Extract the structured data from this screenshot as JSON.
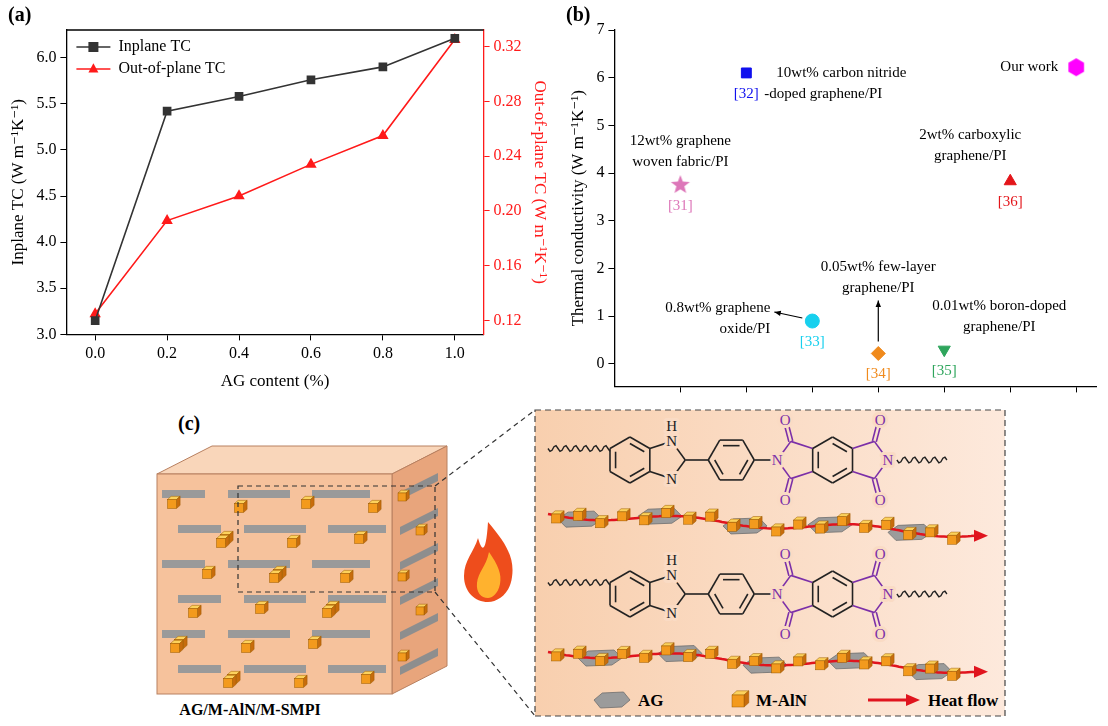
{
  "chart_data": [
    {
      "panel_label": "(a)",
      "type": "line",
      "x": [
        0,
        0.2,
        0.4,
        0.6,
        0.8,
        1.0
      ],
      "x_label": "AG content (%)",
      "y_label": "Inplane TC (W m⁻¹K⁻¹)",
      "y2_label": "Out-of-plane TC (W m⁻¹K⁻¹)",
      "xlim": [
        -0.08,
        1.08
      ],
      "xticks": [
        {
          "value": 0,
          "label": "0.0"
        },
        0.2,
        0.4,
        0.6,
        0.8,
        {
          "value": 1,
          "label": "1.0"
        }
      ],
      "ylim": [
        3.0,
        6.3
      ],
      "yticks": [
        {
          "value": 3,
          "label": "3.0"
        },
        3.5,
        {
          "value": 4,
          "label": "4.0"
        },
        4.5,
        {
          "value": 5,
          "label": "5.0"
        },
        5.5,
        {
          "value": 6,
          "label": "6.0"
        }
      ],
      "y2lim": [
        0.11,
        0.332
      ],
      "y2ticks": [
        0.12,
        0.16,
        {
          "value": 0.2,
          "label": "0.20"
        },
        0.24,
        0.28,
        0.32
      ],
      "grid": false,
      "legend": "upper left",
      "series": [
        {
          "name": "Inplane TC",
          "color": "#333333",
          "marker": "square",
          "line_style": "solid",
          "values": [
            3.15,
            5.42,
            5.58,
            5.76,
            5.9,
            6.21
          ]
        },
        {
          "name": "Out-of-plane TC",
          "color": "#ff1a1a",
          "marker": "triangle",
          "line_style": "solid",
          "axis": "y2",
          "values": [
            0.125,
            0.193,
            0.211,
            0.234,
            0.255,
            0.325
          ]
        }
      ]
    },
    {
      "panel_label": "(b)",
      "type": "scatter",
      "y_label": "Thermal conductivity (W m⁻¹K⁻¹)",
      "xlim": [
        0,
        7.3
      ],
      "xticks": [
        1,
        2,
        3,
        4,
        5,
        6,
        7
      ],
      "ylim": [
        -0.47,
        7
      ],
      "yticks": [
        0,
        1,
        2,
        3,
        4,
        5,
        6,
        7
      ],
      "tick_labels": "y",
      "grid": false,
      "points": [
        {
          "x": 1,
          "y": 3.75,
          "label": "[31]",
          "text": [
            "12wt% graphene",
            "woven fabric/PI"
          ],
          "color": "#dd77b9",
          "marker": "star"
        },
        {
          "x": 2,
          "y": 6.1,
          "label": "[32]",
          "text": [
            "10wt% carbon nitride",
            "-doped graphene/PI"
          ],
          "color": "#1010ee",
          "marker": "square"
        },
        {
          "x": 3,
          "y": 0.9,
          "label": "[33]",
          "text": [
            "0.8wt% graphene",
            "oxide/PI"
          ],
          "color": "#17d0ee",
          "marker": "circle"
        },
        {
          "x": 4,
          "y": 0.22,
          "label": "[34]",
          "text": [
            "0.05wt% few-layer",
            "graphene/PI"
          ],
          "color": "#f08a1c",
          "marker": "diamond"
        },
        {
          "x": 5,
          "y": 0.3,
          "label": "[35]",
          "text": [
            "0.01wt% boron-doped",
            "graphene/PI"
          ],
          "color": "#2ea55c",
          "marker": "triangle-down"
        },
        {
          "x": 6,
          "y": 3.83,
          "label": "[36]",
          "text": [
            "2wt% carboxylic",
            "graphene/PI"
          ],
          "color": "#e3151a",
          "marker": "triangle"
        },
        {
          "x": 7,
          "y": 6.22,
          "text": [
            "Our work"
          ],
          "color": "#ff00ff",
          "marker": "hexagon"
        }
      ]
    }
  ],
  "diagram": {
    "panel_label": "(c)",
    "sample_label": "AG/M-AlN/M-SMPI",
    "atoms": {
      "n": "N",
      "h": "H",
      "o": "O"
    },
    "legend": [
      {
        "name": "AG",
        "marker": "hexagon"
      },
      {
        "name": "M-AlN",
        "marker": "cube"
      },
      {
        "name": "Heat flow",
        "marker": "arrow"
      }
    ]
  }
}
